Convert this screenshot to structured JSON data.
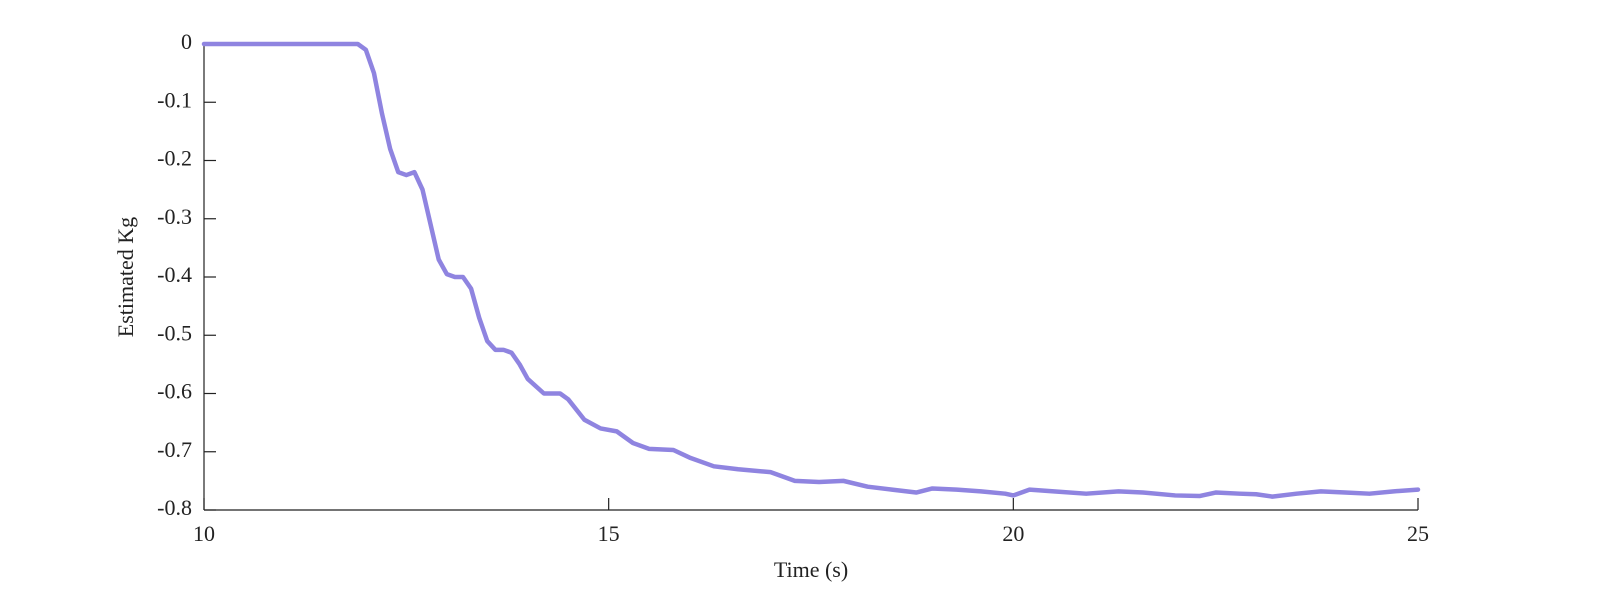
{
  "chart_data": {
    "type": "line",
    "xlabel": "Time (s)",
    "ylabel": "Estimated Kg",
    "x": [
      10,
      11,
      11.9,
      12.0,
      12.1,
      12.2,
      12.3,
      12.4,
      12.5,
      12.6,
      12.7,
      12.8,
      12.9,
      13.0,
      13.1,
      13.2,
      13.3,
      13.4,
      13.5,
      13.6,
      13.7,
      13.8,
      13.9,
      14.0,
      14.2,
      14.4,
      14.5,
      14.7,
      14.9,
      15.1,
      15.3,
      15.5,
      15.8,
      16.0,
      16.3,
      16.6,
      17.0,
      17.3,
      17.6,
      17.9,
      18.2,
      18.5,
      18.8,
      19.0,
      19.3,
      19.6,
      19.9,
      20.0,
      20.2,
      20.5,
      20.9,
      21.3,
      21.6,
      22.0,
      22.3,
      22.5,
      22.8,
      23.0,
      23.2,
      23.5,
      23.8,
      24.1,
      24.4,
      24.7,
      25.0
    ],
    "series": [
      {
        "color": "#8f84e0",
        "values": [
          0,
          0,
          0,
          -0.01,
          -0.05,
          -0.12,
          -0.18,
          -0.22,
          -0.225,
          -0.22,
          -0.25,
          -0.31,
          -0.37,
          -0.395,
          -0.4,
          -0.4,
          -0.42,
          -0.47,
          -0.51,
          -0.525,
          -0.525,
          -0.53,
          -0.55,
          -0.575,
          -0.6,
          -0.6,
          -0.61,
          -0.645,
          -0.66,
          -0.665,
          -0.685,
          -0.695,
          -0.697,
          -0.71,
          -0.725,
          -0.73,
          -0.735,
          -0.75,
          -0.752,
          -0.75,
          -0.76,
          -0.765,
          -0.77,
          -0.763,
          -0.765,
          -0.768,
          -0.772,
          -0.775,
          -0.765,
          -0.768,
          -0.772,
          -0.768,
          -0.77,
          -0.775,
          -0.776,
          -0.77,
          -0.772,
          -0.773,
          -0.777,
          -0.772,
          -0.768,
          -0.77,
          -0.772,
          -0.768,
          -0.765
        ]
      }
    ],
    "xlim": [
      10,
      25
    ],
    "xticks": [
      10,
      15,
      20,
      25
    ],
    "ylim": [
      -0.8,
      0
    ],
    "yticks": [
      0,
      -0.1,
      -0.2,
      -0.3,
      -0.4,
      -0.5,
      -0.6,
      -0.7,
      -0.8
    ]
  }
}
